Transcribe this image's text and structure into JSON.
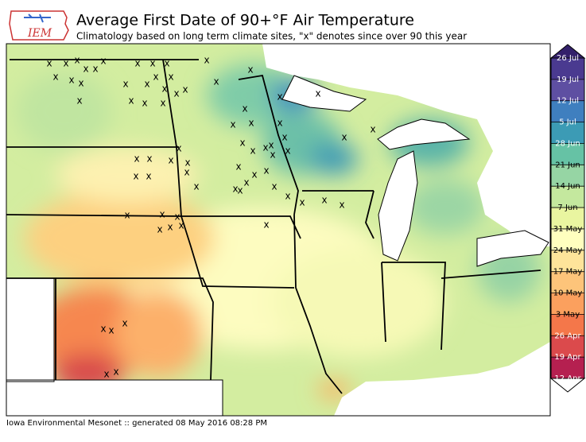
{
  "header": {
    "logo": "IEM",
    "title": "Average First Date of 90+°F Air Temperature",
    "subtitle": "Climatology based on long term climate sites, \"x\" denotes since over 90 this year"
  },
  "map": {
    "marker": "x"
  },
  "colorbar": {
    "labels": [
      "26 Jul",
      "19 Jul",
      "12 Jul",
      "5 Jul",
      "28 Jun",
      "21 Jun",
      "14 Jun",
      "7 Jun",
      "31 May",
      "24 May",
      "17 May",
      "10 May",
      "3 May",
      "26 Apr",
      "19 Apr",
      "12 Apr"
    ],
    "colors": [
      "#4a3a90",
      "#5e4fa2",
      "#3f7fbf",
      "#3c9bb5",
      "#66c2a5",
      "#96d5a4",
      "#c4e89e",
      "#e9f5a0",
      "#ffffbf",
      "#fee49a",
      "#fdc47a",
      "#fba05e",
      "#f4774a",
      "#db4a4c",
      "#b52050"
    ]
  },
  "footer": "Iowa Environmental Mesonet :: generated 08 May 2016 08:28 PM"
}
